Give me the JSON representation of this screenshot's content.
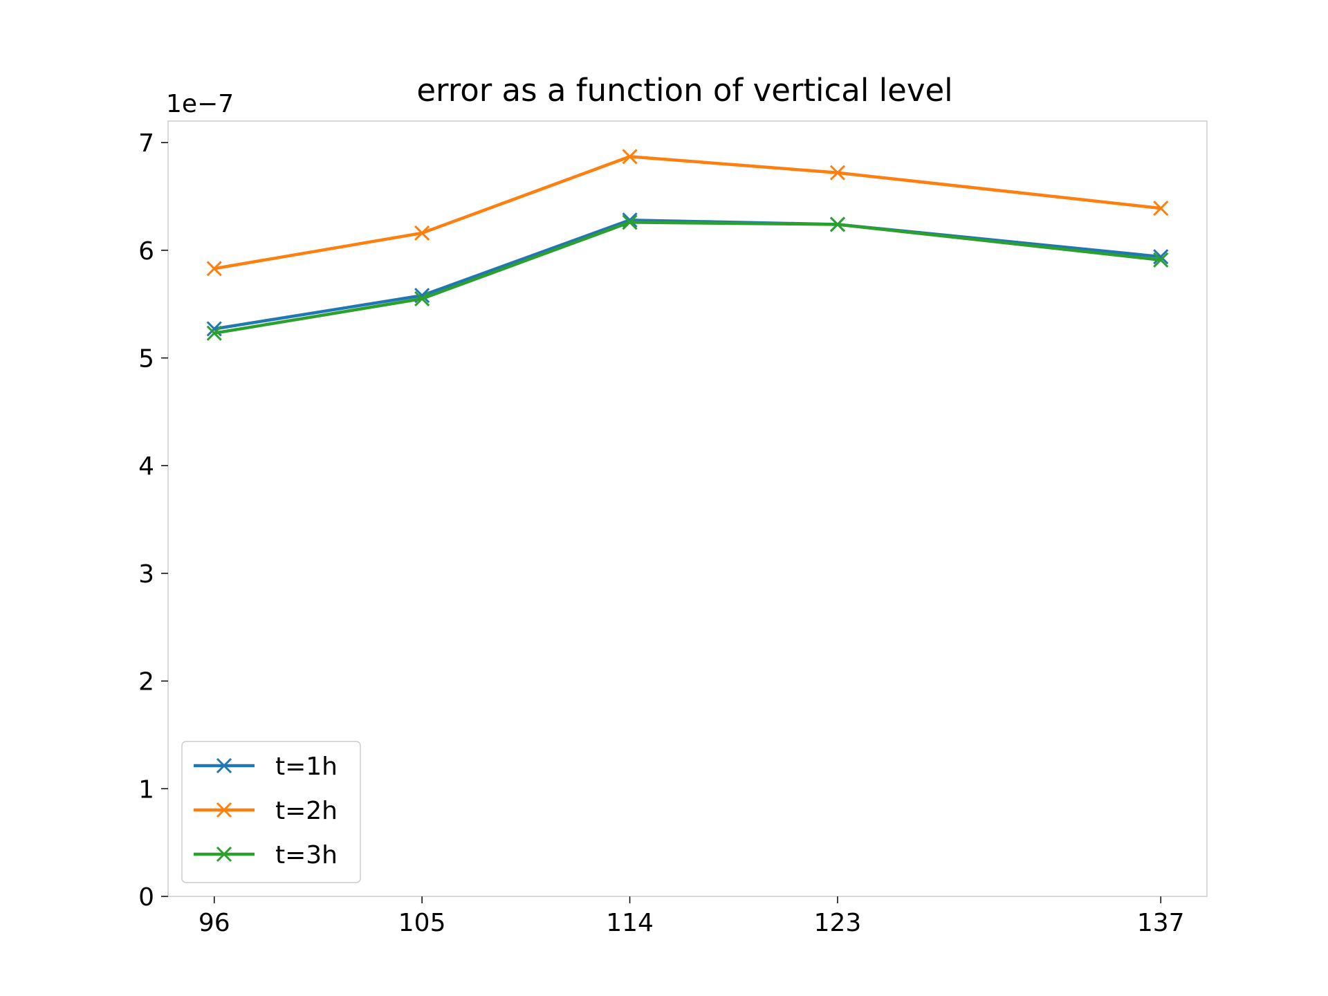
{
  "chart_data": {
    "type": "line",
    "title": "error as a function of vertical level",
    "xlabel": "",
    "ylabel": "",
    "y_offset_label": "1e−7",
    "x": [
      96,
      105,
      114,
      123,
      137
    ],
    "xticks": [
      "96",
      "105",
      "114",
      "123",
      "137"
    ],
    "yticks": [
      "0",
      "1",
      "2",
      "3",
      "4",
      "5",
      "6",
      "7"
    ],
    "xlim": [
      94,
      139
    ],
    "ylim": [
      0,
      7.2
    ],
    "y_unit_scale": "1e-7",
    "grid": false,
    "legend_position": "lower-left",
    "marker": "x",
    "series": [
      {
        "name": "t=1h",
        "color": "#1f77b4",
        "values": [
          5.27,
          5.58,
          6.28,
          6.24,
          5.94
        ]
      },
      {
        "name": "t=2h",
        "color": "#ff7f0e",
        "values": [
          5.83,
          6.16,
          6.87,
          6.72,
          6.39
        ]
      },
      {
        "name": "t=3h",
        "color": "#2ca02c",
        "values": [
          5.23,
          5.55,
          6.26,
          6.24,
          5.91
        ]
      }
    ]
  }
}
